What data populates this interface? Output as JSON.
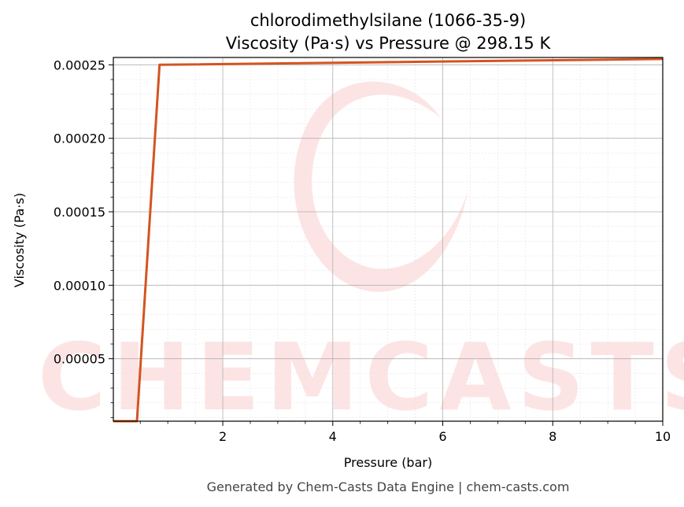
{
  "chart_data": {
    "type": "line",
    "title": "chlorodimethylsilane (1066-35-9)",
    "subtitle": "Viscosity (Pa·s) vs Pressure @ 298.15 K",
    "xlabel": "Pressure (bar)",
    "ylabel": "Viscosity (Pa·s)",
    "xlim": [
      0.01,
      10
    ],
    "ylim": [
      7.5e-06,
      0.000255
    ],
    "x_ticks": [
      2,
      4,
      6,
      8,
      10
    ],
    "x_tick_labels": [
      "2",
      "4",
      "6",
      "8",
      "10"
    ],
    "y_ticks": [
      5e-05,
      0.0001,
      0.00015,
      0.0002,
      0.00025
    ],
    "y_tick_labels": [
      "0.00005",
      "0.00010",
      "0.00015",
      "0.00020",
      "0.00025"
    ],
    "grid": true,
    "legend": "none",
    "series": [
      {
        "color": "#d4541f",
        "x": [
          0.01,
          0.44,
          0.85,
          10
        ],
        "y": [
          7.5e-06,
          7.5e-06,
          0.00025,
          0.000254
        ]
      }
    ],
    "footer": "Generated by Chem-Casts Data Engine | chem-casts.com",
    "watermark": "CHEMCASTS"
  }
}
